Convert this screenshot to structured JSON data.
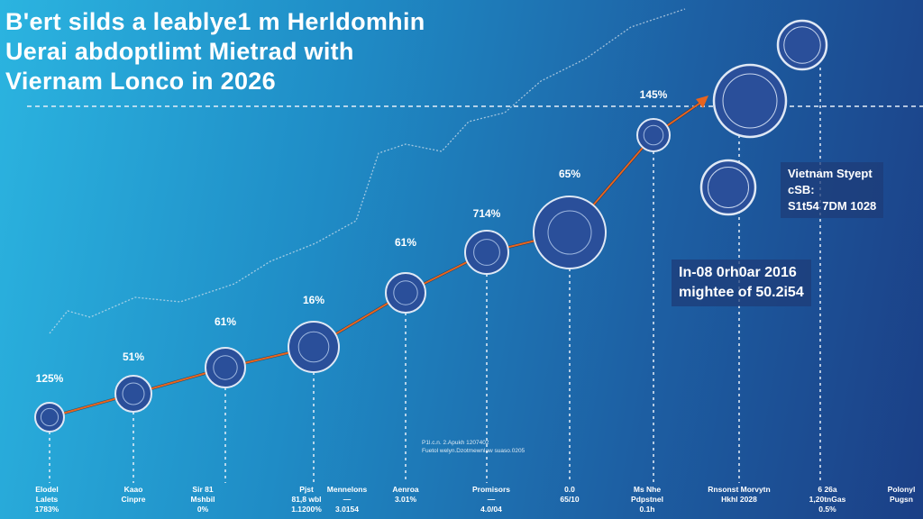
{
  "title": "B'ert silds a leablye1 m Herldomhin\nUerai abdoptlimt Mietrad with\nViernam Lonco in 2026",
  "colors": {
    "line": "#e8641e",
    "node": "#2a4f9a",
    "node_stroke": "#dfe8f5",
    "bg_start": "#2bb4e0",
    "bg_end": "#1b3f86"
  },
  "chart_data": {
    "type": "line",
    "title": "B'ert silds a leablye1 m Herldomhin Uerai abdoptlimt Mietrad with Viernam Lonco in 2026",
    "data_labels": [
      "125%",
      "51%",
      "61%",
      "16%",
      "61%",
      "714%",
      "65%",
      "145%"
    ],
    "grid": false
  },
  "callouts": {
    "right": "Vietnam Styept\ncSB:\nS1t54 7DM 1028",
    "middle": "In-08 0rh0ar 2016\nmightee of 50.2i54"
  },
  "note": "P1l.c.n. 2.Apukh 1207402\nFuetol welyn.Dzotmewnlaw suaso.0205",
  "bottom_labels": [
    "Elodel\nLalets\n1783%",
    "Kaao\nCinpre",
    "Sir 81\nMshbil\n0%",
    "Mennelons\n—\n3.0154",
    "Pjst\n81,8 wbl\n1.1200%",
    "Aenroa\n3.01%",
    "Promisors\n—\n4.0/04",
    "0.0\n65/10",
    "Ms Nhe\nPdpstnel\n0.1h",
    "Rnsonst Morvytn\nHkhl 2028",
    "6 26a\n1,20tnGas\n0.5%",
    "Polonyl\nPugsn"
  ]
}
